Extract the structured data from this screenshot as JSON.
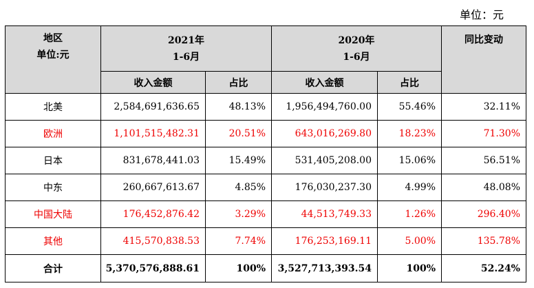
{
  "unit_note": "单位：元",
  "table": {
    "header": {
      "region_label": "地区",
      "unit_label": "单位:元",
      "period_2021_year": "2021年",
      "period_2021_range": "1-6月",
      "period_2020_year": "2020年",
      "period_2020_range": "1-6月",
      "yoy_label": "同比变动",
      "revenue_2021": "收入金额",
      "share_2021": "占比",
      "revenue_2020": "收入金额",
      "share_2020": "占比"
    },
    "rows": [
      {
        "region": "北美",
        "rev2021": "2,584,691,636.65",
        "share2021": "48.13%",
        "rev2020": "1,956,494,760.00",
        "share2020": "55.46%",
        "yoy": "32.11%"
      },
      {
        "region": "欧洲",
        "rev2021": "1,101,515,482.31",
        "share2021": "20.51%",
        "rev2020": "643,016,269.80",
        "share2020": "18.23%",
        "yoy": "71.30%"
      },
      {
        "region": "日本",
        "rev2021": "831,678,441.03",
        "share2021": "15.49%",
        "rev2020": "531,405,208.00",
        "share2020": "15.06%",
        "yoy": "56.51%"
      },
      {
        "region": "中东",
        "rev2021": "260,667,613.67",
        "share2021": "4.85%",
        "rev2020": "176,030,237.30",
        "share2020": "4.99%",
        "yoy": "48.08%"
      },
      {
        "region": "中国大陆",
        "rev2021": "176,452,876.42",
        "share2021": "3.29%",
        "rev2020": "44,513,749.33",
        "share2020": "1.26%",
        "yoy": "296.40%"
      },
      {
        "region": "其他",
        "rev2021": "415,570,838.53",
        "share2021": "7.74%",
        "rev2020": "176,253,169.11",
        "share2020": "5.00%",
        "yoy": "135.78%"
      }
    ],
    "total": {
      "region": "合计",
      "rev2021": "5,370,576,888.61",
      "share2021": "100%",
      "rev2020": "3,527,713,393.54",
      "share2020": "100%",
      "yoy": "52.24%"
    },
    "highlight_color": "#ee0000"
  }
}
